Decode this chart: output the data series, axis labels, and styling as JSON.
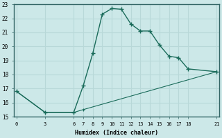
{
  "line1_x": [
    0,
    3,
    6,
    7,
    8,
    9,
    10,
    11,
    12,
    13,
    14,
    15,
    16,
    17,
    18,
    21
  ],
  "line1_y": [
    16.8,
    15.3,
    15.3,
    17.2,
    19.5,
    22.3,
    22.7,
    22.65,
    21.6,
    21.1,
    21.1,
    20.1,
    19.3,
    19.2,
    18.4,
    18.2
  ],
  "line2_x": [
    0,
    3,
    6,
    7,
    21
  ],
  "line2_y": [
    16.8,
    15.3,
    15.3,
    15.5,
    18.2
  ],
  "line_color": "#1a6b5a",
  "bg_color": "#cce8e8",
  "grid_color": "#b8d8d8",
  "xlabel": "Humidex (Indice chaleur)",
  "xticks": [
    0,
    3,
    6,
    7,
    8,
    9,
    10,
    11,
    12,
    13,
    14,
    15,
    16,
    17,
    18,
    21
  ],
  "yticks": [
    15,
    16,
    17,
    18,
    19,
    20,
    21,
    22,
    23
  ],
  "xlim": [
    -0.3,
    21.3
  ],
  "ylim": [
    15,
    23
  ]
}
